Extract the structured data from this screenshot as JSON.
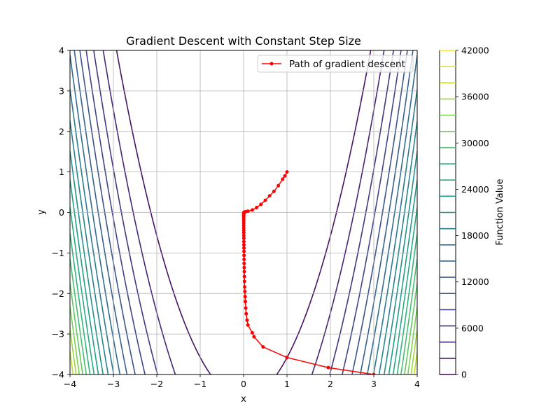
{
  "chart_data": {
    "type": "line",
    "title": "Gradient Descent with Constant Step Size",
    "xlabel": "x",
    "ylabel": "y",
    "xlim": [
      -4,
      4
    ],
    "ylim": [
      -4,
      4
    ],
    "xticks": [
      -4,
      -3,
      -2,
      -1,
      0,
      1,
      2,
      3,
      4
    ],
    "xtick_labels": [
      "−4",
      "−3",
      "−2",
      "−1",
      "0",
      "1",
      "2",
      "3",
      "4"
    ],
    "yticks": [
      -4,
      -3,
      -2,
      -1,
      0,
      1,
      2,
      3,
      4
    ],
    "ytick_labels": [
      "−4",
      "−3",
      "−2",
      "−1",
      "0",
      "1",
      "2",
      "3",
      "4"
    ],
    "grid": true,
    "legend_position": "top-right",
    "contour": {
      "function": "rosenbrock",
      "a": 1,
      "b": 100,
      "levels_step": 2100,
      "levels_max": 42000,
      "colormap": "viridis"
    },
    "colorbar": {
      "label": "Function Value",
      "min": 0,
      "max": 42000,
      "ticks": [
        0,
        6000,
        12000,
        18000,
        24000,
        30000,
        36000,
        42000
      ],
      "tick_labels": [
        "0",
        "6000",
        "12000",
        "18000",
        "24000",
        "30000",
        "36000",
        "42000"
      ]
    },
    "series": [
      {
        "name": "Path of gradient descent",
        "color": "#ff0000",
        "marker": "dot",
        "x": [
          3.0,
          1.95,
          1.0,
          0.45,
          0.24,
          0.2,
          0.1,
          0.08,
          0.06,
          0.05,
          0.04,
          0.035,
          0.03,
          0.025,
          0.02,
          0.018,
          0.016,
          0.014,
          0.012,
          0.011,
          0.01,
          0.009,
          0.008,
          0.007,
          0.006,
          0.006,
          0.005,
          0.005,
          0.004,
          0.004,
          0.003,
          0.003,
          0.003,
          0.003,
          0.003,
          0.003,
          0.004,
          0.005,
          0.008,
          0.012,
          0.02,
          0.05,
          0.1,
          0.2,
          0.3,
          0.4,
          0.5,
          0.6,
          0.7,
          0.8,
          0.9,
          0.95,
          1.0
        ],
        "y": [
          -4.0,
          -3.83,
          -3.58,
          -3.32,
          -3.07,
          -2.97,
          -2.78,
          -2.66,
          -2.5,
          -2.36,
          -2.2,
          -2.08,
          -1.95,
          -1.84,
          -1.7,
          -1.58,
          -1.46,
          -1.36,
          -1.26,
          -1.16,
          -1.06,
          -0.96,
          -0.88,
          -0.8,
          -0.72,
          -0.64,
          -0.57,
          -0.5,
          -0.44,
          -0.38,
          -0.32,
          -0.26,
          -0.2,
          -0.15,
          -0.1,
          -0.06,
          -0.03,
          -0.01,
          0.0,
          0.0,
          0.01,
          0.02,
          0.03,
          0.06,
          0.12,
          0.2,
          0.3,
          0.41,
          0.52,
          0.66,
          0.82,
          0.9,
          1.0
        ]
      }
    ]
  }
}
